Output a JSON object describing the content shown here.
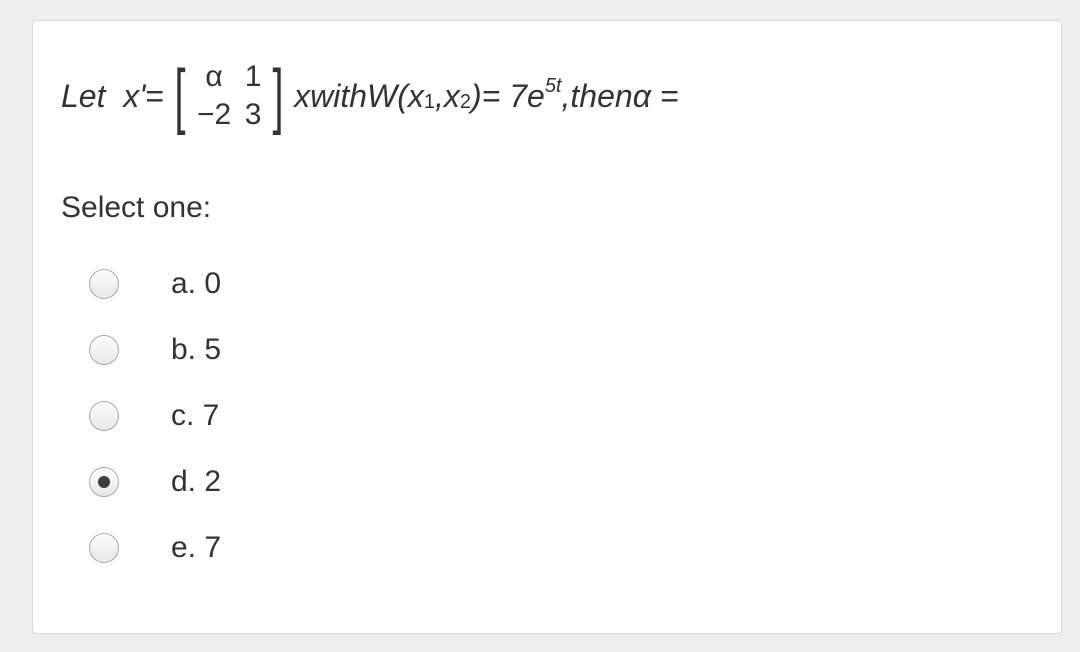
{
  "question": {
    "let_text": "Let",
    "var_prime": "x'",
    "equals": " = ",
    "matrix": {
      "r1c1": "α",
      "r1c2": "1",
      "r2c1": "−2",
      "r2c2": "3"
    },
    "after_matrix_x": "x",
    "with_text": " with ",
    "W_text": "W",
    "W_args_open": "(",
    "x1_base": "x",
    "x1_sub": "1",
    "comma": ",",
    "x2_base": "x",
    "x2_sub": "2",
    "W_args_close": ")",
    "eq_rhs_a": " = 7e",
    "exp": "5t",
    "then_text": " ,then ",
    "alpha_eq": "α ="
  },
  "prompt": "Select one:",
  "options": [
    {
      "label": "a. 0",
      "checked": false
    },
    {
      "label": "b. 5",
      "checked": false
    },
    {
      "label": "c. 7",
      "checked": false
    },
    {
      "label": "d. 2",
      "checked": true
    },
    {
      "label": "e. 7",
      "checked": false
    }
  ],
  "style": {
    "card_bg": "#ffffff",
    "card_border": "#d6d9db",
    "page_bg": "#eceeef",
    "text_color": "#333333",
    "radio_border": "#a7a9ac",
    "radio_dot": "#3b3d3f",
    "font_size_question": 32,
    "font_size_option": 30
  }
}
